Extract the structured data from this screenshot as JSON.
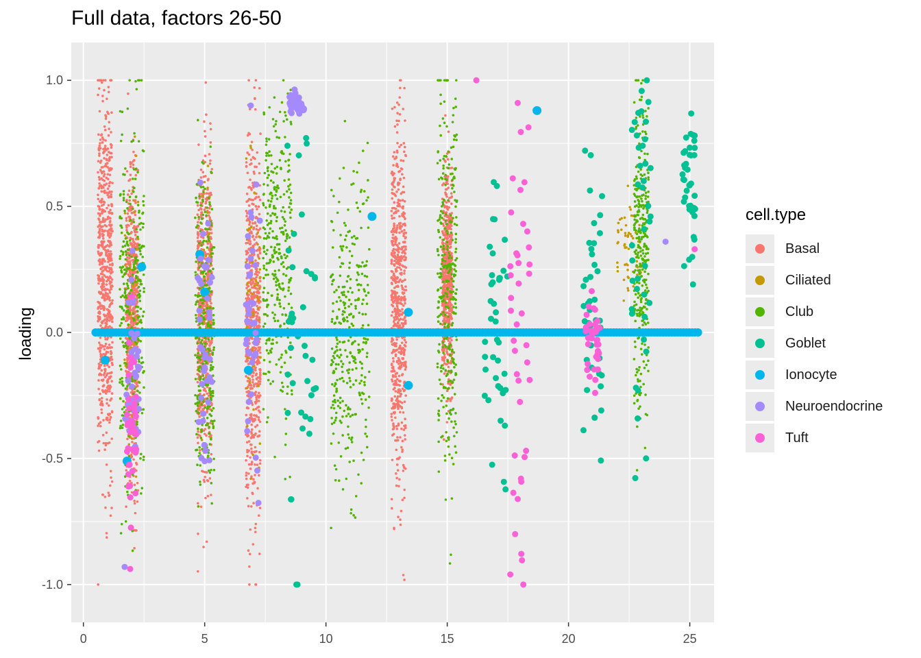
{
  "chart_data": {
    "type": "scatter",
    "title": "Full data, factors 26-50",
    "xlabel": "",
    "ylabel": "loading",
    "xlim": [
      -0.5,
      26.0
    ],
    "ylim": [
      -1.15,
      1.15
    ],
    "x_ticks": [
      "0",
      "5",
      "10",
      "15",
      "20",
      "25"
    ],
    "y_ticks": [
      "-1.0",
      "-0.5",
      "0.0",
      "0.5",
      "1.0"
    ],
    "grid": true,
    "legend_title": "cell.type",
    "legend_position": "right",
    "colors": {
      "Basal": "#F8766D",
      "Ciliated": "#C49A00",
      "Club": "#53B400",
      "Goblet": "#00C094",
      "Ionocyte": "#00B6EB",
      "Neuroendocrine": "#A58AFF",
      "Tuft": "#FB61D7"
    },
    "series": [
      {
        "name": "Basal",
        "clusters": [
          {
            "x": 0.9,
            "spread": 0.3,
            "center": 0.2,
            "sd": 0.35
          },
          {
            "x": 2.0,
            "spread": 0.25,
            "center": 0.0,
            "sd": 0.3
          },
          {
            "x": 5.0,
            "spread": 0.3,
            "center": 0.05,
            "sd": 0.3
          },
          {
            "x": 7.0,
            "spread": 0.3,
            "center": 0.05,
            "sd": 0.35
          },
          {
            "x": 13.0,
            "spread": 0.3,
            "center": 0.1,
            "sd": 0.35
          },
          {
            "x": 15.0,
            "spread": 0.2,
            "center": 0.2,
            "sd": 0.2
          }
        ]
      },
      {
        "name": "Ciliated",
        "clusters": [
          {
            "x": 2.0,
            "spread": 0.3,
            "center": 0.0,
            "sd": 0.3
          },
          {
            "x": 5.0,
            "spread": 0.3,
            "center": 0.1,
            "sd": 0.25
          },
          {
            "x": 7.0,
            "spread": 0.3,
            "center": 0.1,
            "sd": 0.25
          },
          {
            "x": 22.5,
            "spread": 0.5,
            "center": 0.35,
            "sd": 0.1
          }
        ]
      },
      {
        "name": "Club",
        "clusters": [
          {
            "x": 2.0,
            "spread": 0.5,
            "center": 0.1,
            "sd": 0.35
          },
          {
            "x": 5.0,
            "spread": 0.4,
            "center": 0.0,
            "sd": 0.3
          },
          {
            "x": 8.0,
            "spread": 0.6,
            "center": 0.3,
            "sd": 0.3
          },
          {
            "x": 11.0,
            "spread": 0.8,
            "center": 0.0,
            "sd": 0.3
          },
          {
            "x": 15.0,
            "spread": 0.4,
            "center": 0.2,
            "sd": 0.4
          },
          {
            "x": 23.0,
            "spread": 0.3,
            "center": 0.3,
            "sd": 0.3
          }
        ]
      },
      {
        "name": "Goblet",
        "clusters": [
          {
            "x": 9.0,
            "spread": 0.6,
            "center": 0.0,
            "sd": 0.4
          },
          {
            "x": 17.0,
            "spread": 0.5,
            "center": 0.0,
            "sd": 0.3
          },
          {
            "x": 21.0,
            "spread": 0.4,
            "center": 0.0,
            "sd": 0.3
          },
          {
            "x": 23.0,
            "spread": 0.4,
            "center": 0.3,
            "sd": 0.4
          },
          {
            "x": 25.0,
            "spread": 0.3,
            "center": 0.6,
            "sd": 0.2
          }
        ]
      },
      {
        "name": "Ionocyte",
        "line_y": 0.0,
        "x_range": [
          0.5,
          25.4
        ],
        "extra": [
          [
            0.9,
            -0.11
          ],
          [
            1.8,
            -0.51
          ],
          [
            2.4,
            0.26
          ],
          [
            5.0,
            0.16
          ],
          [
            4.8,
            0.31
          ],
          [
            6.8,
            -0.15
          ],
          [
            11.9,
            0.46
          ],
          [
            13.4,
            0.08
          ],
          [
            13.4,
            -0.21
          ],
          [
            18.7,
            0.88
          ]
        ]
      },
      {
        "name": "Neuroendocrine",
        "clusters": [
          {
            "x": 2.0,
            "spread": 0.3,
            "center": -0.15,
            "sd": 0.2
          },
          {
            "x": 5.0,
            "spread": 0.3,
            "center": -0.05,
            "sd": 0.25
          },
          {
            "x": 7.0,
            "spread": 0.3,
            "center": 0.05,
            "sd": 0.3
          },
          {
            "x": 8.8,
            "spread": 0.3,
            "center": 0.9,
            "sd": 0.02
          }
        ],
        "extra": [
          [
            1.7,
            -0.93
          ],
          [
            6.9,
            0.9
          ],
          [
            24.0,
            0.36
          ]
        ]
      },
      {
        "name": "Tuft",
        "clusters": [
          {
            "x": 2.0,
            "spread": 0.2,
            "center": -0.35,
            "sd": 0.2
          },
          {
            "x": 18.0,
            "spread": 0.4,
            "center": 0.0,
            "sd": 0.55
          },
          {
            "x": 21.0,
            "spread": 0.3,
            "center": 0.0,
            "sd": 0.1
          }
        ],
        "extra": [
          [
            16.2,
            1.0
          ],
          [
            17.6,
            -0.96
          ],
          [
            25.2,
            0.33
          ],
          [
            17.8,
            -0.8
          ]
        ]
      }
    ]
  }
}
